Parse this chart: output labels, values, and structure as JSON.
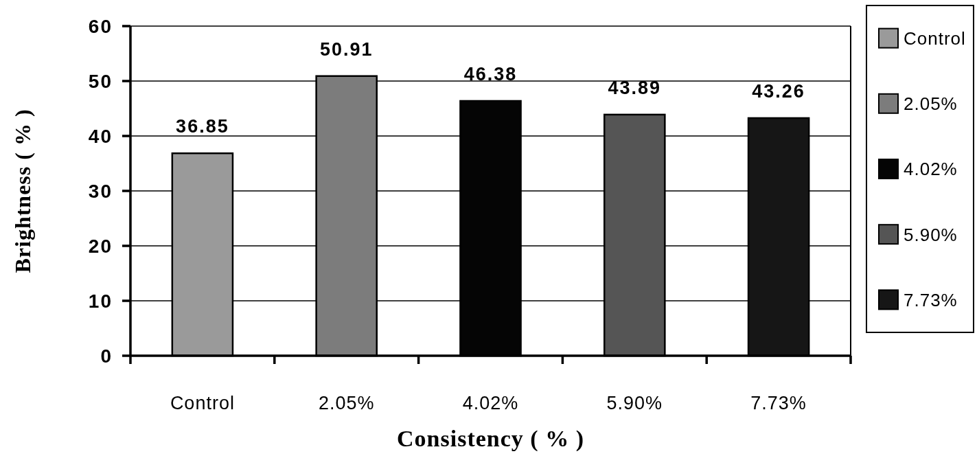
{
  "chart_data": {
    "type": "bar",
    "xlabel": "Consistency ( % )",
    "ylabel": "Brightness ( % )",
    "categories": [
      "Control",
      "2.05%",
      "4.02%",
      "5.90%",
      "7.73%"
    ],
    "series": [
      {
        "name": "Control",
        "color": "#9a9a9a",
        "values": [
          36.85,
          null,
          null,
          null,
          null
        ]
      },
      {
        "name": "2.05%",
        "color": "#7c7c7c",
        "values": [
          null,
          50.91,
          null,
          null,
          null
        ]
      },
      {
        "name": "4.02%",
        "color": "#050505",
        "values": [
          null,
          null,
          46.38,
          null,
          null
        ]
      },
      {
        "name": "5.90%",
        "color": "#555555",
        "values": [
          null,
          null,
          null,
          43.89,
          null
        ]
      },
      {
        "name": "7.73%",
        "color": "#161616",
        "values": [
          null,
          null,
          null,
          null,
          43.26
        ]
      }
    ],
    "stacked": true,
    "ylim": [
      0,
      60
    ],
    "yticks": [
      0,
      10,
      20,
      30,
      40,
      50,
      60
    ],
    "grid": "y",
    "legend": "right",
    "data_labels": true
  }
}
